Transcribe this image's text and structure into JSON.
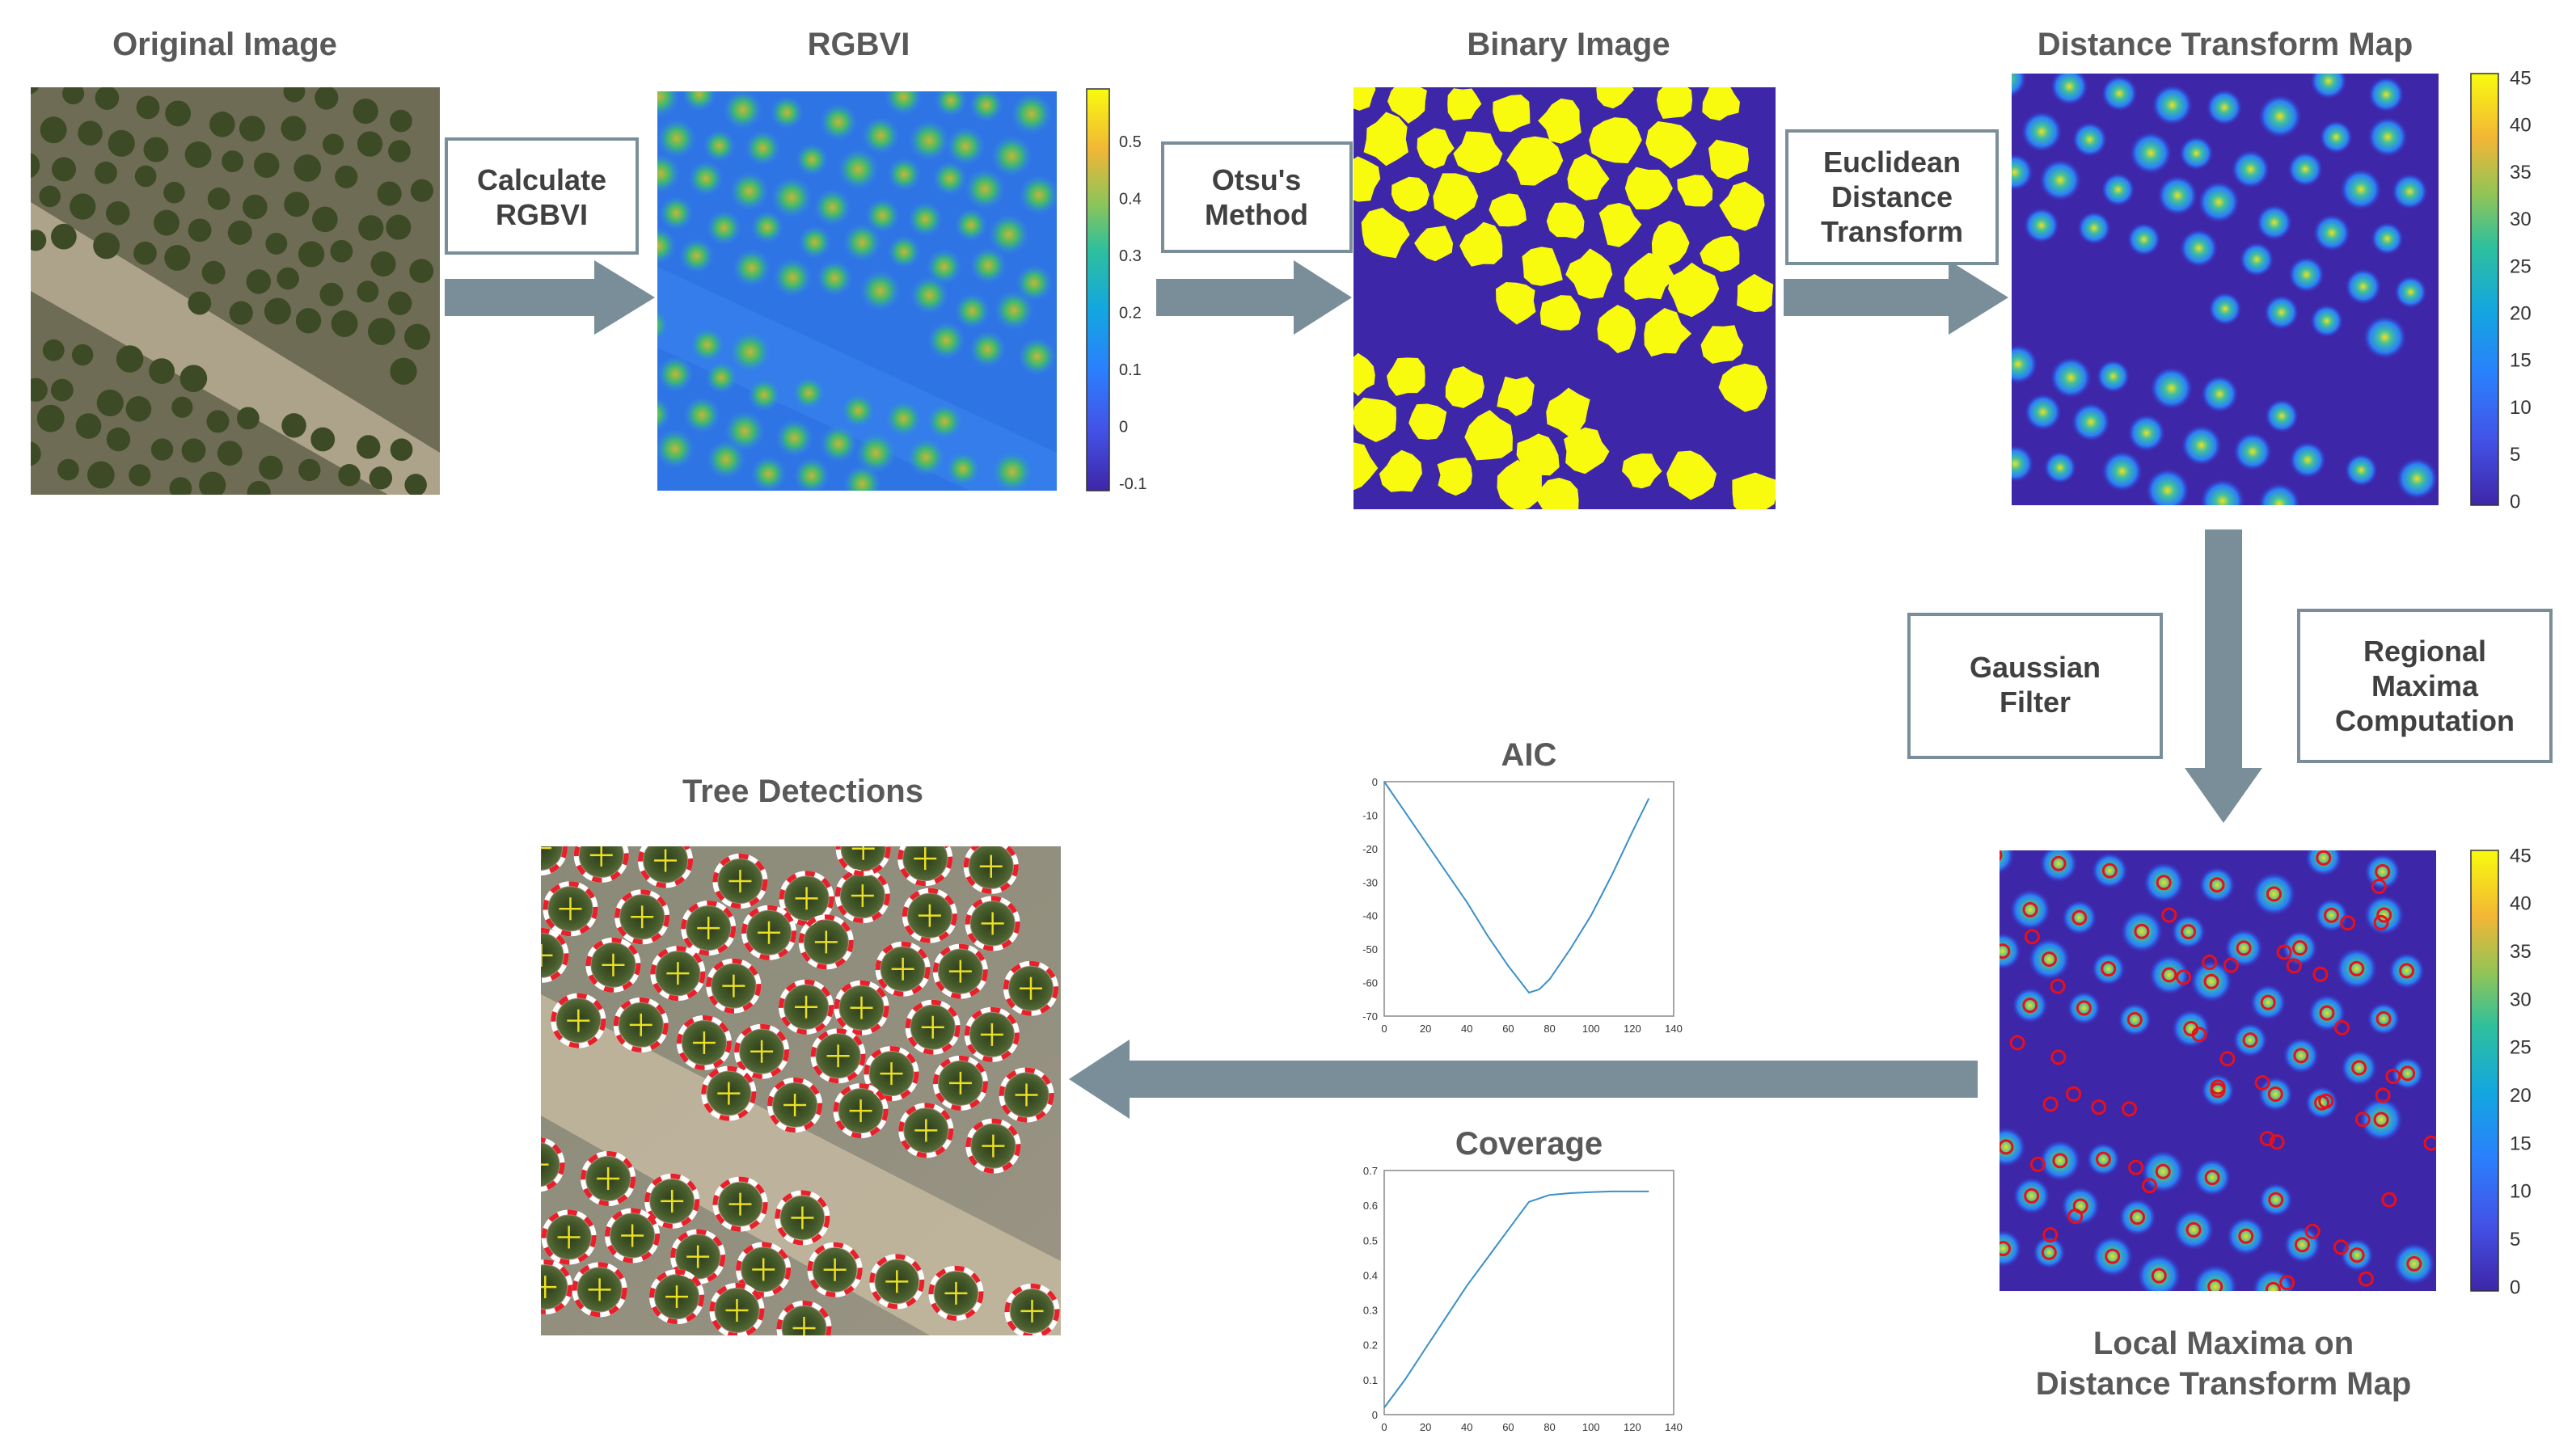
{
  "panels": {
    "original": "Original Image",
    "rgbvi": "RGBVI",
    "binary": "Binary Image",
    "dtm": "Distance Transform Map",
    "local_maxima": [
      "Local Maxima on",
      "Distance Transform Map"
    ],
    "tree": "Tree Detections"
  },
  "steps": {
    "calc": [
      "Calculate",
      "RGBVI"
    ],
    "otsu": [
      "Otsu's",
      "Method"
    ],
    "edt": [
      "Euclidean",
      "Distance",
      "Transform"
    ],
    "gauss": [
      "Gaussian",
      "Filter"
    ],
    "regional": [
      "Regional",
      "Maxima",
      "Computation"
    ]
  },
  "colorbars": {
    "rgbvi": [
      "0.5",
      "0.4",
      "0.3",
      "0.2",
      "0.1",
      "0",
      "-0.1"
    ],
    "dtm": [
      "45",
      "40",
      "35",
      "30",
      "25",
      "20",
      "15",
      "10",
      "5",
      "0"
    ],
    "lm": [
      "45",
      "40",
      "35",
      "30",
      "25",
      "20",
      "15",
      "10",
      "5",
      "0"
    ]
  },
  "colors": {
    "arrow": "#7a8e99",
    "box_border": "#7a8e99",
    "parula_low": "#3e26a8",
    "parula_high": "#f9fb0e",
    "maxima_marker": "#e8101a",
    "detection_ring": "#e8202a",
    "aic_line": "#3a90c8"
  },
  "chart_data": [
    {
      "type": "line",
      "title": "AIC",
      "x": [
        0,
        10,
        20,
        30,
        40,
        50,
        60,
        70,
        75,
        80,
        90,
        100,
        110,
        120,
        128
      ],
      "y": [
        0,
        -9,
        -18,
        -27,
        -36,
        -46,
        -55,
        -63,
        -62,
        -59,
        -50,
        -40,
        -28,
        -15,
        -5
      ],
      "xticks": [
        "0",
        "20",
        "40",
        "60",
        "80",
        "100",
        "120",
        "140"
      ],
      "yticks": [
        "0",
        "-10",
        "-20",
        "-30",
        "-40",
        "-50",
        "-60",
        "-70"
      ],
      "xlim": [
        0,
        140
      ],
      "ylim": [
        -70,
        0
      ]
    },
    {
      "type": "line",
      "title": "Coverage",
      "x": [
        0,
        10,
        20,
        30,
        40,
        50,
        60,
        70,
        80,
        90,
        100,
        110,
        120,
        128
      ],
      "y": [
        0.02,
        0.1,
        0.19,
        0.28,
        0.37,
        0.45,
        0.53,
        0.61,
        0.63,
        0.635,
        0.638,
        0.64,
        0.64,
        0.64
      ],
      "xticks": [
        "0",
        "20",
        "40",
        "60",
        "80",
        "100",
        "120",
        "140"
      ],
      "yticks": [
        "0",
        "0.1",
        "0.2",
        "0.3",
        "0.4",
        "0.5",
        "0.6",
        "0.7"
      ],
      "xlim": [
        0,
        140
      ],
      "ylim": [
        0,
        0.7
      ]
    }
  ]
}
